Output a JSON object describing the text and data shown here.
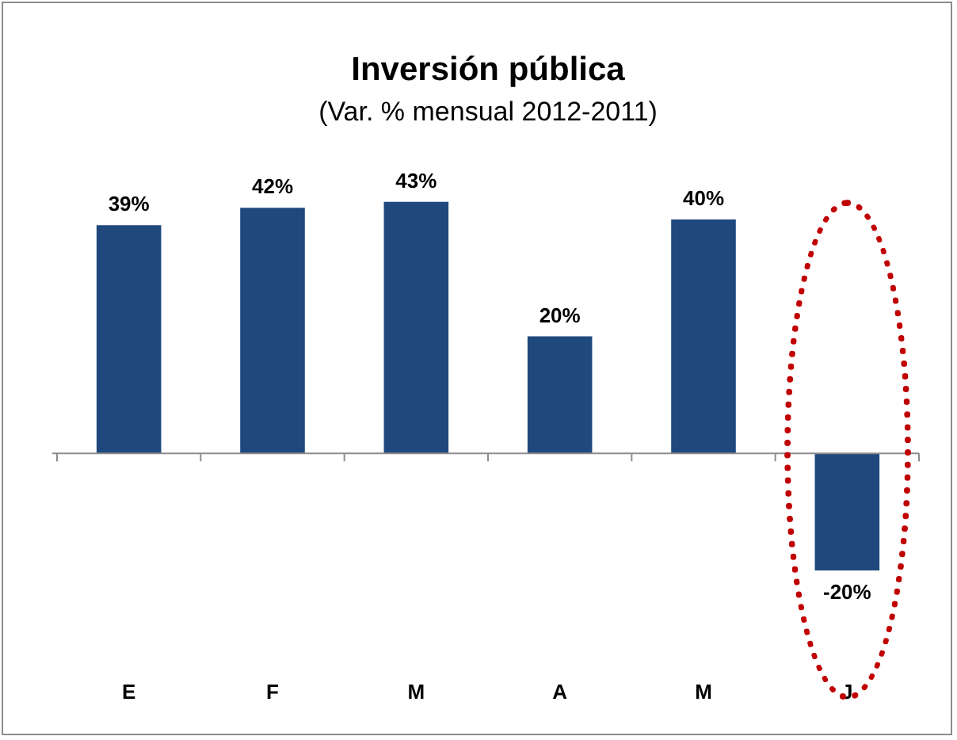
{
  "chart_data": {
    "type": "bar",
    "title": "Inversión pública",
    "subtitle": "(Var. % mensual 2012-2011)",
    "categories": [
      "E",
      "F",
      "M",
      "A",
      "M",
      "J"
    ],
    "values": [
      39,
      42,
      43,
      20,
      40,
      -20
    ],
    "value_labels": [
      "39%",
      "42%",
      "43%",
      "20%",
      "40%",
      "-20%"
    ],
    "color": "#1f497d"
  }
}
